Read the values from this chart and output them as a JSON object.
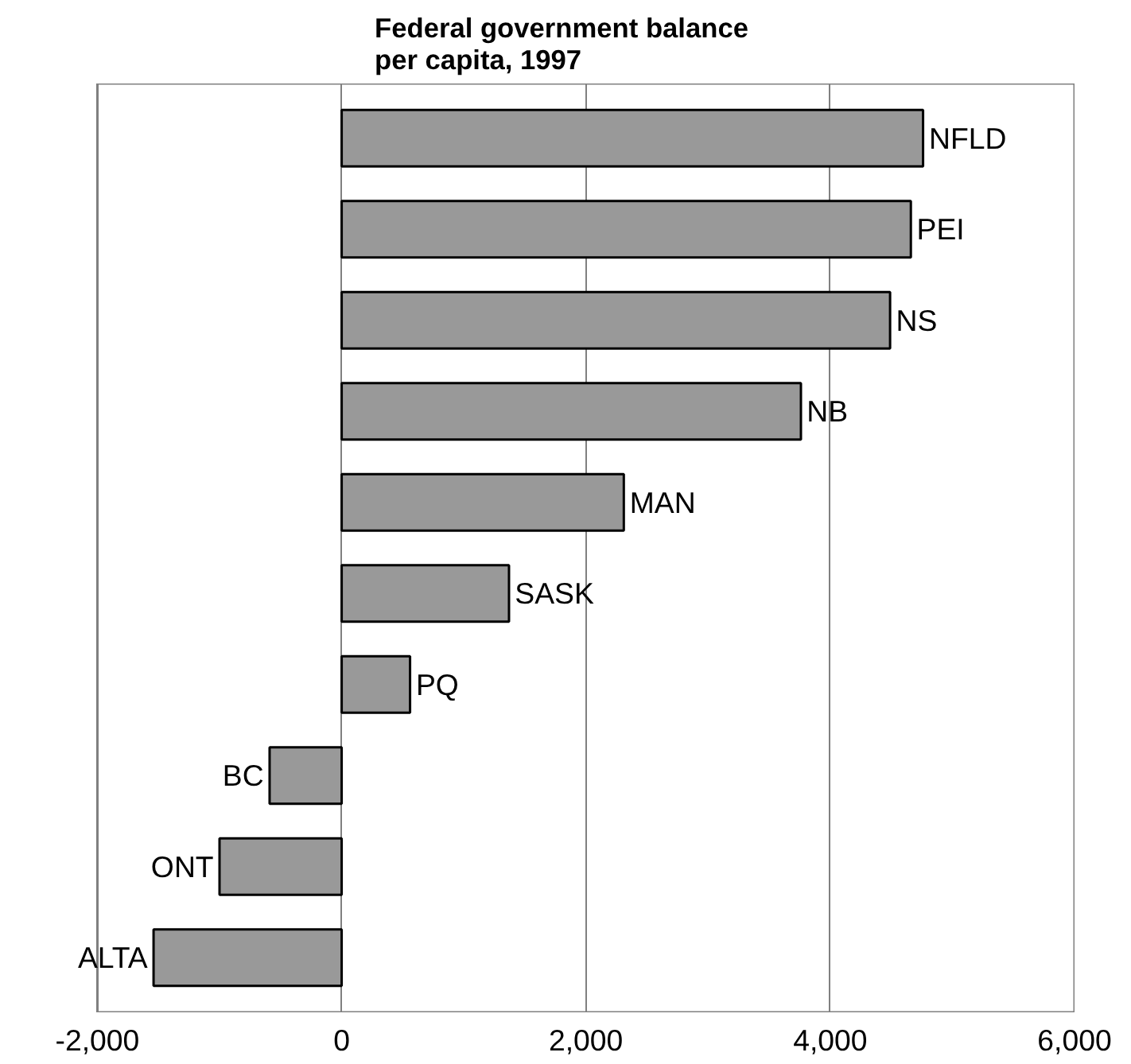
{
  "chart_data": {
    "type": "bar",
    "orientation": "horizontal",
    "title": "Federal government balance per capita, 1997",
    "categories": [
      "NFLD",
      "PEI",
      "NS",
      "NB",
      "MAN",
      "SASK",
      "PQ",
      "BC",
      "ONT",
      "ALTA"
    ],
    "values": [
      4760,
      4660,
      4490,
      3760,
      2310,
      1370,
      560,
      -590,
      -1000,
      -1540
    ],
    "color": "#999999",
    "xlim": [
      -2000,
      6000
    ],
    "xticks": [
      {
        "value": -2000,
        "label": "-2,000"
      },
      0,
      {
        "value": 2000,
        "label": "2,000"
      },
      {
        "value": 4000,
        "label": "4,000"
      },
      {
        "value": 6000,
        "label": "6,000"
      }
    ],
    "grid": "x",
    "tick_labels": "x"
  }
}
